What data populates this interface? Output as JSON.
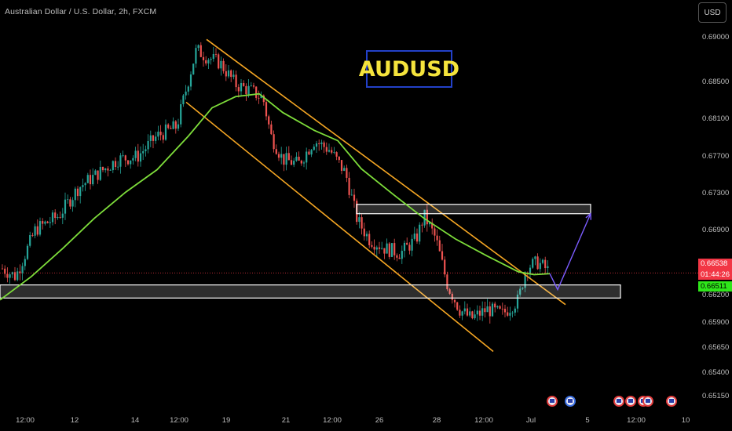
{
  "header": {
    "title": "Australian Dollar / U.S. Dollar, 2h, FXCM"
  },
  "currency_button": "USD",
  "badge": "AUDUSD",
  "price_labels": {
    "last": "0.66538",
    "countdown": "01:44:26",
    "ma": "0.66511",
    "colors": {
      "last": "#f23645",
      "ma": "#2ee61a"
    }
  },
  "colors": {
    "background": "#000000",
    "bull": "#26a69a",
    "bear": "#ef5350",
    "ma_line": "#7ddc3a",
    "channel": "#f5a623",
    "zone_border": "#ffffff",
    "projection": "#7b5cff",
    "badge_text": "#f5e43c",
    "badge_border": "#2341c9"
  },
  "icons": [
    "us-flag-icon",
    "au-flag-icon",
    "us-flag-icon",
    "us-flag-icon",
    "us-flag-icon",
    "us-flag-icon",
    "us-flag-icon"
  ],
  "chart_data": {
    "type": "candlestick",
    "title": "Australian Dollar / U.S. Dollar, 2h, FXCM",
    "ylim": [
      0.6506,
      0.692
    ],
    "y_ticks": [
      "0.69000",
      "0.68500",
      "0.68100",
      "0.67700",
      "0.67300",
      "0.66900",
      "0.66200",
      "0.65900",
      "0.65650",
      "0.65400",
      "0.65150"
    ],
    "x_ticks": [
      "12:00",
      "12",
      "14",
      "12:00",
      "19",
      "21",
      "12:00",
      "26",
      "28",
      "12:00",
      "Jul",
      "5",
      "12:00",
      "10"
    ],
    "path_points": [
      [
        0,
        0.666
      ],
      [
        20,
        0.665
      ],
      [
        45,
        0.67
      ],
      [
        75,
        0.6715
      ],
      [
        100,
        0.6745
      ],
      [
        125,
        0.676
      ],
      [
        150,
        0.6775
      ],
      [
        175,
        0.6778
      ],
      [
        200,
        0.68
      ],
      [
        225,
        0.681
      ],
      [
        240,
        0.686
      ],
      [
        250,
        0.6892
      ],
      [
        262,
        0.6885
      ],
      [
        280,
        0.6878
      ],
      [
        300,
        0.6855
      ],
      [
        320,
        0.6848
      ],
      [
        335,
        0.684
      ],
      [
        345,
        0.68
      ],
      [
        360,
        0.6775
      ],
      [
        380,
        0.677
      ],
      [
        400,
        0.6795
      ],
      [
        420,
        0.6785
      ],
      [
        440,
        0.676
      ],
      [
        455,
        0.671
      ],
      [
        470,
        0.669
      ],
      [
        490,
        0.668
      ],
      [
        510,
        0.6675
      ],
      [
        530,
        0.669
      ],
      [
        540,
        0.6715
      ],
      [
        555,
        0.669
      ],
      [
        570,
        0.664
      ],
      [
        585,
        0.6615
      ],
      [
        600,
        0.6605
      ],
      [
        620,
        0.6615
      ],
      [
        640,
        0.661
      ],
      [
        660,
        0.6625
      ],
      [
        670,
        0.666
      ],
      [
        685,
        0.6665
      ],
      [
        700,
        0.6655
      ]
    ],
    "ma": [
      [
        0,
        0.6625
      ],
      [
        40,
        0.665
      ],
      [
        80,
        0.668
      ],
      [
        120,
        0.6712
      ],
      [
        160,
        0.674
      ],
      [
        200,
        0.6764
      ],
      [
        240,
        0.68
      ],
      [
        270,
        0.683
      ],
      [
        300,
        0.6842
      ],
      [
        330,
        0.6845
      ],
      [
        360,
        0.6825
      ],
      [
        400,
        0.6806
      ],
      [
        430,
        0.6795
      ],
      [
        460,
        0.6765
      ],
      [
        500,
        0.6738
      ],
      [
        540,
        0.6712
      ],
      [
        580,
        0.669
      ],
      [
        620,
        0.6672
      ],
      [
        660,
        0.6655
      ],
      [
        680,
        0.6652
      ],
      [
        700,
        0.6653
      ]
    ],
    "channel_upper": [
      [
        263,
        0.6903
      ],
      [
        720,
        0.662
      ]
    ],
    "channel_lower": [
      [
        237,
        0.6836
      ],
      [
        628,
        0.657
      ]
    ],
    "zones": [
      {
        "x0": 454,
        "x1": 752,
        "y_top": 0.6727,
        "y_bot": 0.6717
      },
      {
        "x0": 0,
        "x1": 790,
        "y_top": 0.6641,
        "y_bot": 0.6627
      }
    ],
    "projection": [
      [
        700,
        0.6653
      ],
      [
        710,
        0.6636
      ],
      [
        752,
        0.6717
      ]
    ],
    "last_price": 0.66538,
    "ma_price": 0.66511,
    "grid": false,
    "legend": "none"
  }
}
